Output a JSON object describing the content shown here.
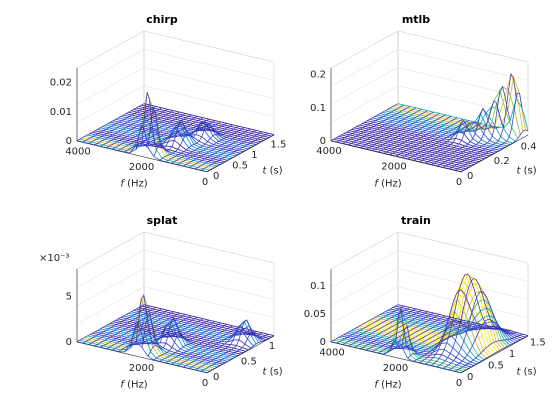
{
  "chart_data": [
    {
      "type": "surface",
      "title": "chirp",
      "xlabel_italic": "f",
      "xlabel_unit": " (Hz)",
      "ylabel_italic": "t",
      "ylabel_unit": " (s)",
      "z_ticks": [
        "0",
        "0.01",
        "0.02"
      ],
      "z_exponent": "",
      "f_ticks": [
        "4000",
        "2000",
        "0"
      ],
      "t_ticks": [
        "0",
        "0.5",
        "1",
        "1.5"
      ],
      "zlim": [
        0,
        0.025
      ],
      "flim": [
        0,
        4096
      ],
      "tlim": [
        0,
        1.75
      ],
      "peaks": [
        {
          "f": 2000,
          "t": 0.15,
          "z": 0.022,
          "wf": 250,
          "wt": 0.12
        },
        {
          "f": 1700,
          "t": 0.7,
          "z": 0.008,
          "wf": 250,
          "wt": 0.15
        },
        {
          "f": 1400,
          "t": 1.1,
          "z": 0.006,
          "wf": 250,
          "wt": 0.15
        }
      ]
    },
    {
      "type": "surface",
      "title": "mtlb",
      "xlabel_italic": "f",
      "xlabel_unit": " (Hz)",
      "ylabel_italic": "t",
      "ylabel_unit": " (s)",
      "z_ticks": [
        "0",
        "0.1",
        "0.2"
      ],
      "z_exponent": "",
      "f_ticks": [
        "4000",
        "2000",
        "0"
      ],
      "t_ticks": [
        "0",
        "0.2",
        "0.4"
      ],
      "zlim": [
        0,
        0.22
      ],
      "flim": [
        0,
        4000
      ],
      "tlim": [
        0,
        0.5
      ],
      "peaks": [
        {
          "f": 300,
          "t": 0.47,
          "z": 0.19,
          "wf": 200,
          "wt": 0.04
        },
        {
          "f": 600,
          "t": 0.43,
          "z": 0.14,
          "wf": 200,
          "wt": 0.04
        },
        {
          "f": 900,
          "t": 0.38,
          "z": 0.08,
          "wf": 200,
          "wt": 0.04
        },
        {
          "f": 1200,
          "t": 0.32,
          "z": 0.06,
          "wf": 200,
          "wt": 0.04
        }
      ]
    },
    {
      "type": "surface",
      "title": "splat",
      "xlabel_italic": "f",
      "xlabel_unit": " (Hz)",
      "ylabel_italic": "t",
      "ylabel_unit": " (s)",
      "z_ticks": [
        "0",
        "5"
      ],
      "z_exponent": "×10⁻³",
      "f_ticks": [
        "2000",
        "0"
      ],
      "t_ticks": [
        "0",
        "0.5",
        "1"
      ],
      "zlim": [
        0,
        8
      ],
      "flim": [
        0,
        4096
      ],
      "tlim": [
        0,
        1.2
      ],
      "peaks": [
        {
          "f": 2200,
          "t": 0.12,
          "z": 6.5,
          "wf": 250,
          "wt": 0.1
        },
        {
          "f": 1900,
          "t": 0.45,
          "z": 3.0,
          "wf": 250,
          "wt": 0.1
        },
        {
          "f": 400,
          "t": 0.9,
          "z": 2.5,
          "wf": 250,
          "wt": 0.1
        }
      ]
    },
    {
      "type": "surface",
      "title": "train",
      "xlabel_italic": "f",
      "xlabel_unit": " (Hz)",
      "ylabel_italic": "t",
      "ylabel_unit": " (s)",
      "z_ticks": [
        "0",
        "0.05",
        "0.1"
      ],
      "z_exponent": "",
      "f_ticks": [
        "4000",
        "2000",
        "0"
      ],
      "t_ticks": [
        "0",
        "0.5",
        "1",
        "1.5"
      ],
      "zlim": [
        0,
        0.13
      ],
      "flim": [
        0,
        4096
      ],
      "tlim": [
        0,
        1.6
      ],
      "peaks": [
        {
          "f": 2000,
          "t": 0.1,
          "z": 0.09,
          "wf": 200,
          "wt": 0.1
        },
        {
          "f": 1000,
          "t": 0.8,
          "z": 0.11,
          "wf": 300,
          "wt": 0.35
        },
        {
          "f": 600,
          "t": 0.9,
          "z": 0.09,
          "wf": 300,
          "wt": 0.35
        }
      ]
    }
  ]
}
